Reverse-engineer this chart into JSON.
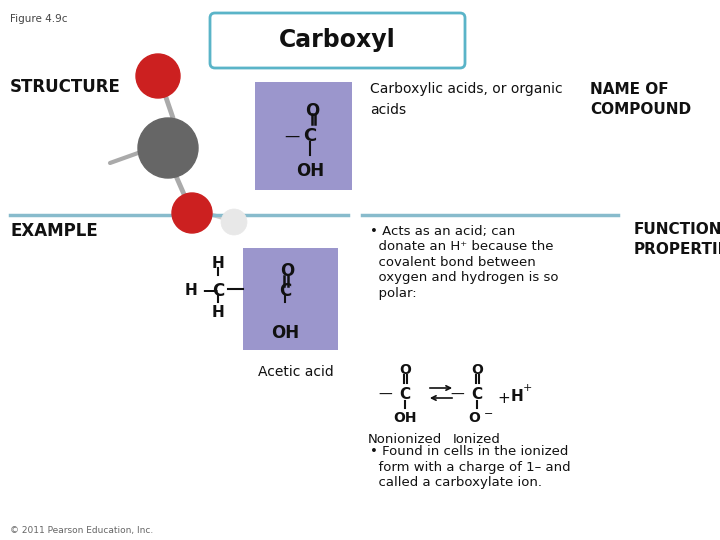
{
  "fig_label": "Figure 4.9c",
  "title": "Carboxyl",
  "title_box_color": "#5ab4c8",
  "title_bg_color": "#ffffff",
  "bg_color": "#ffffff",
  "structure_label": "STRUCTURE",
  "example_label": "EXAMPLE",
  "name_label": "NAME OF\nCOMPOUND",
  "functional_label": "FUNCTIONAL\nPROPERTIES",
  "structure_desc": "Carboxylic acids, or organic\nacids",
  "acetic_acid_label": "Acetic acid",
  "nonionized_label": "Nonionized",
  "ionized_label": "Ionized",
  "bullet1_line1": "• Acts as an acid; can",
  "bullet1_line2": "  donate an H⁺ because the",
  "bullet1_line3": "  covalent bond between",
  "bullet1_line4": "  oxygen and hydrogen is so",
  "bullet1_line5": "  polar:",
  "bullet2_line1": "• Found in cells in the ionized",
  "bullet2_line2": "  form with a charge of 1– and",
  "bullet2_line3": "  called a carboxylate ion.",
  "purple_bg": "#9b96cc",
  "divider_color": "#88bbcc",
  "ball_dark": "#666666",
  "ball_red": "#cc2020",
  "ball_white": "#e8e8e8",
  "copyright": "© 2011 Pearson Education, Inc."
}
